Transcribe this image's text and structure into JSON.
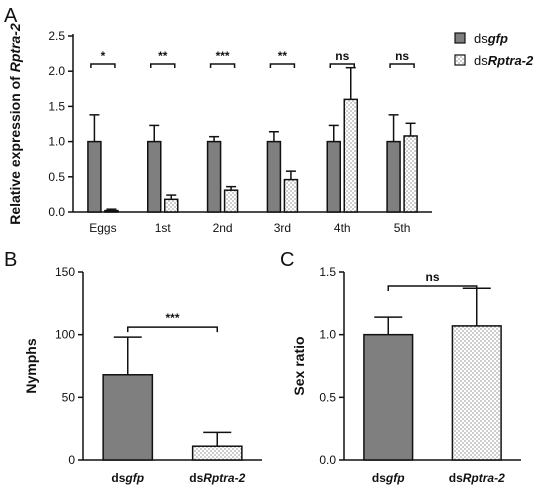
{
  "chart_data": [
    {
      "panel": "A",
      "type": "bar",
      "ylabel_parts": [
        "Relative expression of ",
        "Rptra-2"
      ],
      "ylim": [
        0,
        2.5
      ],
      "yticks": [
        "0.0",
        "0.5",
        "1.0",
        "1.5",
        "2.0",
        "2.5"
      ],
      "categories": [
        "Eggs",
        "1st",
        "2nd",
        "3rd",
        "4th",
        "5th"
      ],
      "series": [
        {
          "name_prefix": "ds",
          "name_italic": "gfp",
          "pattern": "gray",
          "values": [
            1.0,
            1.0,
            1.0,
            1.0,
            1.0,
            1.0
          ],
          "errors": [
            0.38,
            0.23,
            0.07,
            0.14,
            0.23,
            0.38
          ]
        },
        {
          "name_prefix": "ds",
          "name_italic": "Rptra-2",
          "pattern": "dots",
          "values": [
            0.02,
            0.18,
            0.31,
            0.46,
            1.6,
            1.08
          ],
          "errors": [
            0.02,
            0.06,
            0.05,
            0.12,
            0.45,
            0.18
          ]
        }
      ],
      "significance": [
        "*",
        "**",
        "***",
        "**",
        "ns",
        "ns"
      ],
      "legend_position": "top-right",
      "grid": false
    },
    {
      "panel": "B",
      "type": "bar",
      "ylabel": "Nymphs",
      "ylim": [
        0,
        150
      ],
      "yticks": [
        "0",
        "50",
        "100",
        "150"
      ],
      "categories": [
        {
          "prefix": "ds",
          "italic": "gfp"
        },
        {
          "prefix": "ds",
          "italic": "Rptra-2"
        }
      ],
      "values": [
        68,
        11
      ],
      "errors": [
        30,
        11
      ],
      "patterns": [
        "gray",
        "dots"
      ],
      "significance": "***",
      "grid": false
    },
    {
      "panel": "C",
      "type": "bar",
      "ylabel": "Sex ratio",
      "ylim": [
        0,
        1.5
      ],
      "yticks": [
        "0.0",
        "0.5",
        "1.0",
        "1.5"
      ],
      "categories": [
        {
          "prefix": "ds",
          "italic": "gfp"
        },
        {
          "prefix": "ds",
          "italic": "Rptra-2"
        }
      ],
      "values": [
        1.0,
        1.07
      ],
      "errors": [
        0.14,
        0.3
      ],
      "patterns": [
        "gray",
        "dots"
      ],
      "significance": "ns",
      "grid": false
    }
  ],
  "colors": {
    "gray_fill": "#7f7f7f",
    "stroke": "#111111",
    "dot_bg": "#ffffff",
    "dot": "#555555"
  }
}
